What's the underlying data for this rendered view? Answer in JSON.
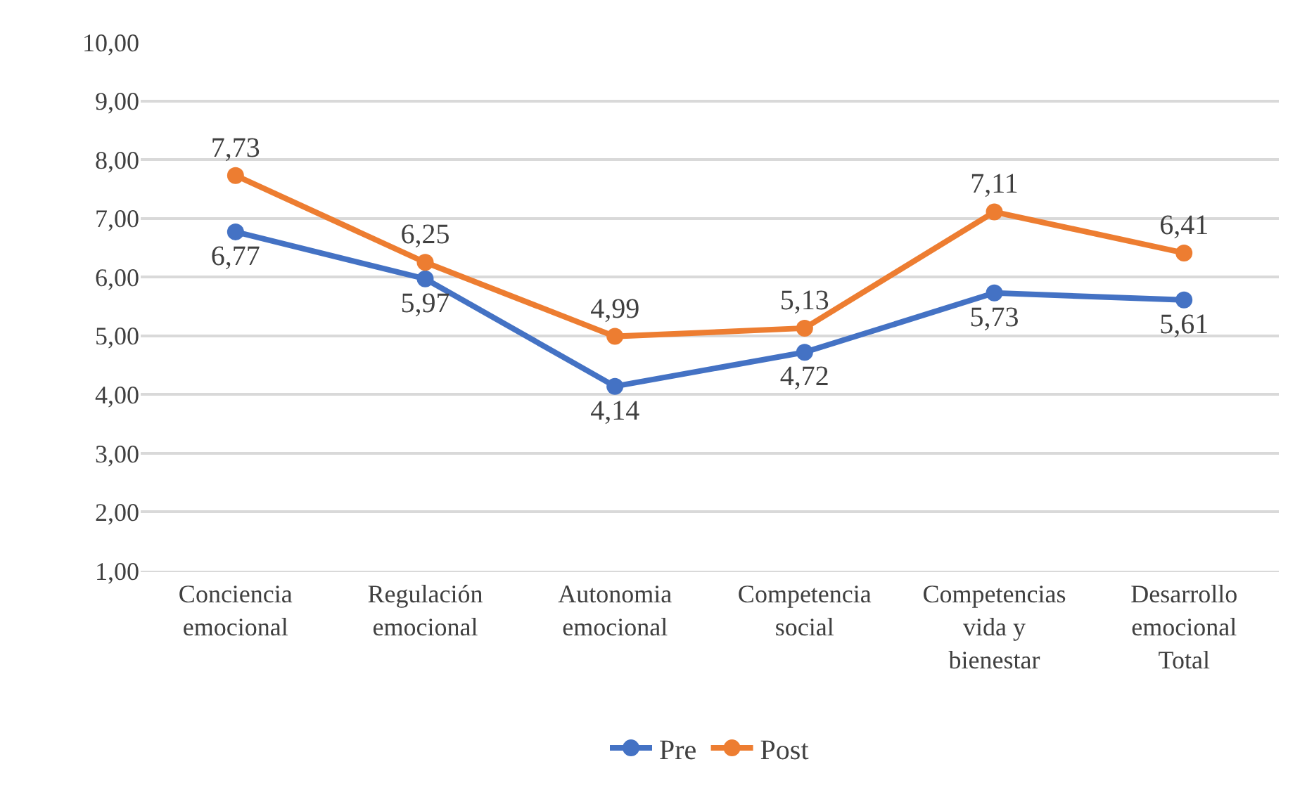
{
  "chart_data": {
    "type": "line",
    "categories": [
      "Conciencia emocional",
      "Regulación emocional",
      "Autonomia emocional",
      "Competencia social",
      "Competencias vida y bienestar",
      "Desarrollo emocional Total"
    ],
    "series": [
      {
        "name": "Pre",
        "color": "#4472c4",
        "values": [
          6.77,
          5.97,
          4.14,
          4.72,
          5.73,
          5.61
        ],
        "value_labels": [
          "6,77",
          "5,97",
          "4,14",
          "4,72",
          "5,73",
          "5,61"
        ]
      },
      {
        "name": "Post",
        "color": "#ed7d31",
        "values": [
          7.73,
          6.25,
          4.99,
          5.13,
          7.11,
          6.41
        ],
        "value_labels": [
          "7,73",
          "6,25",
          "4,99",
          "5,13",
          "7,11",
          "6,41"
        ]
      }
    ],
    "ylim": [
      1,
      10
    ],
    "yticks": [
      {
        "value": 1,
        "label": "1,00"
      },
      {
        "value": 2,
        "label": "2,00"
      },
      {
        "value": 3,
        "label": "3,00"
      },
      {
        "value": 4,
        "label": "4,00"
      },
      {
        "value": 5,
        "label": "5,00"
      },
      {
        "value": 6,
        "label": "6,00"
      },
      {
        "value": 7,
        "label": "7,00"
      },
      {
        "value": 8,
        "label": "8,00"
      },
      {
        "value": 9,
        "label": "9,00"
      },
      {
        "value": 10,
        "label": "10,00"
      }
    ],
    "grid": "y",
    "legend": "bottom",
    "marker": "circle",
    "line_style": "solid"
  }
}
